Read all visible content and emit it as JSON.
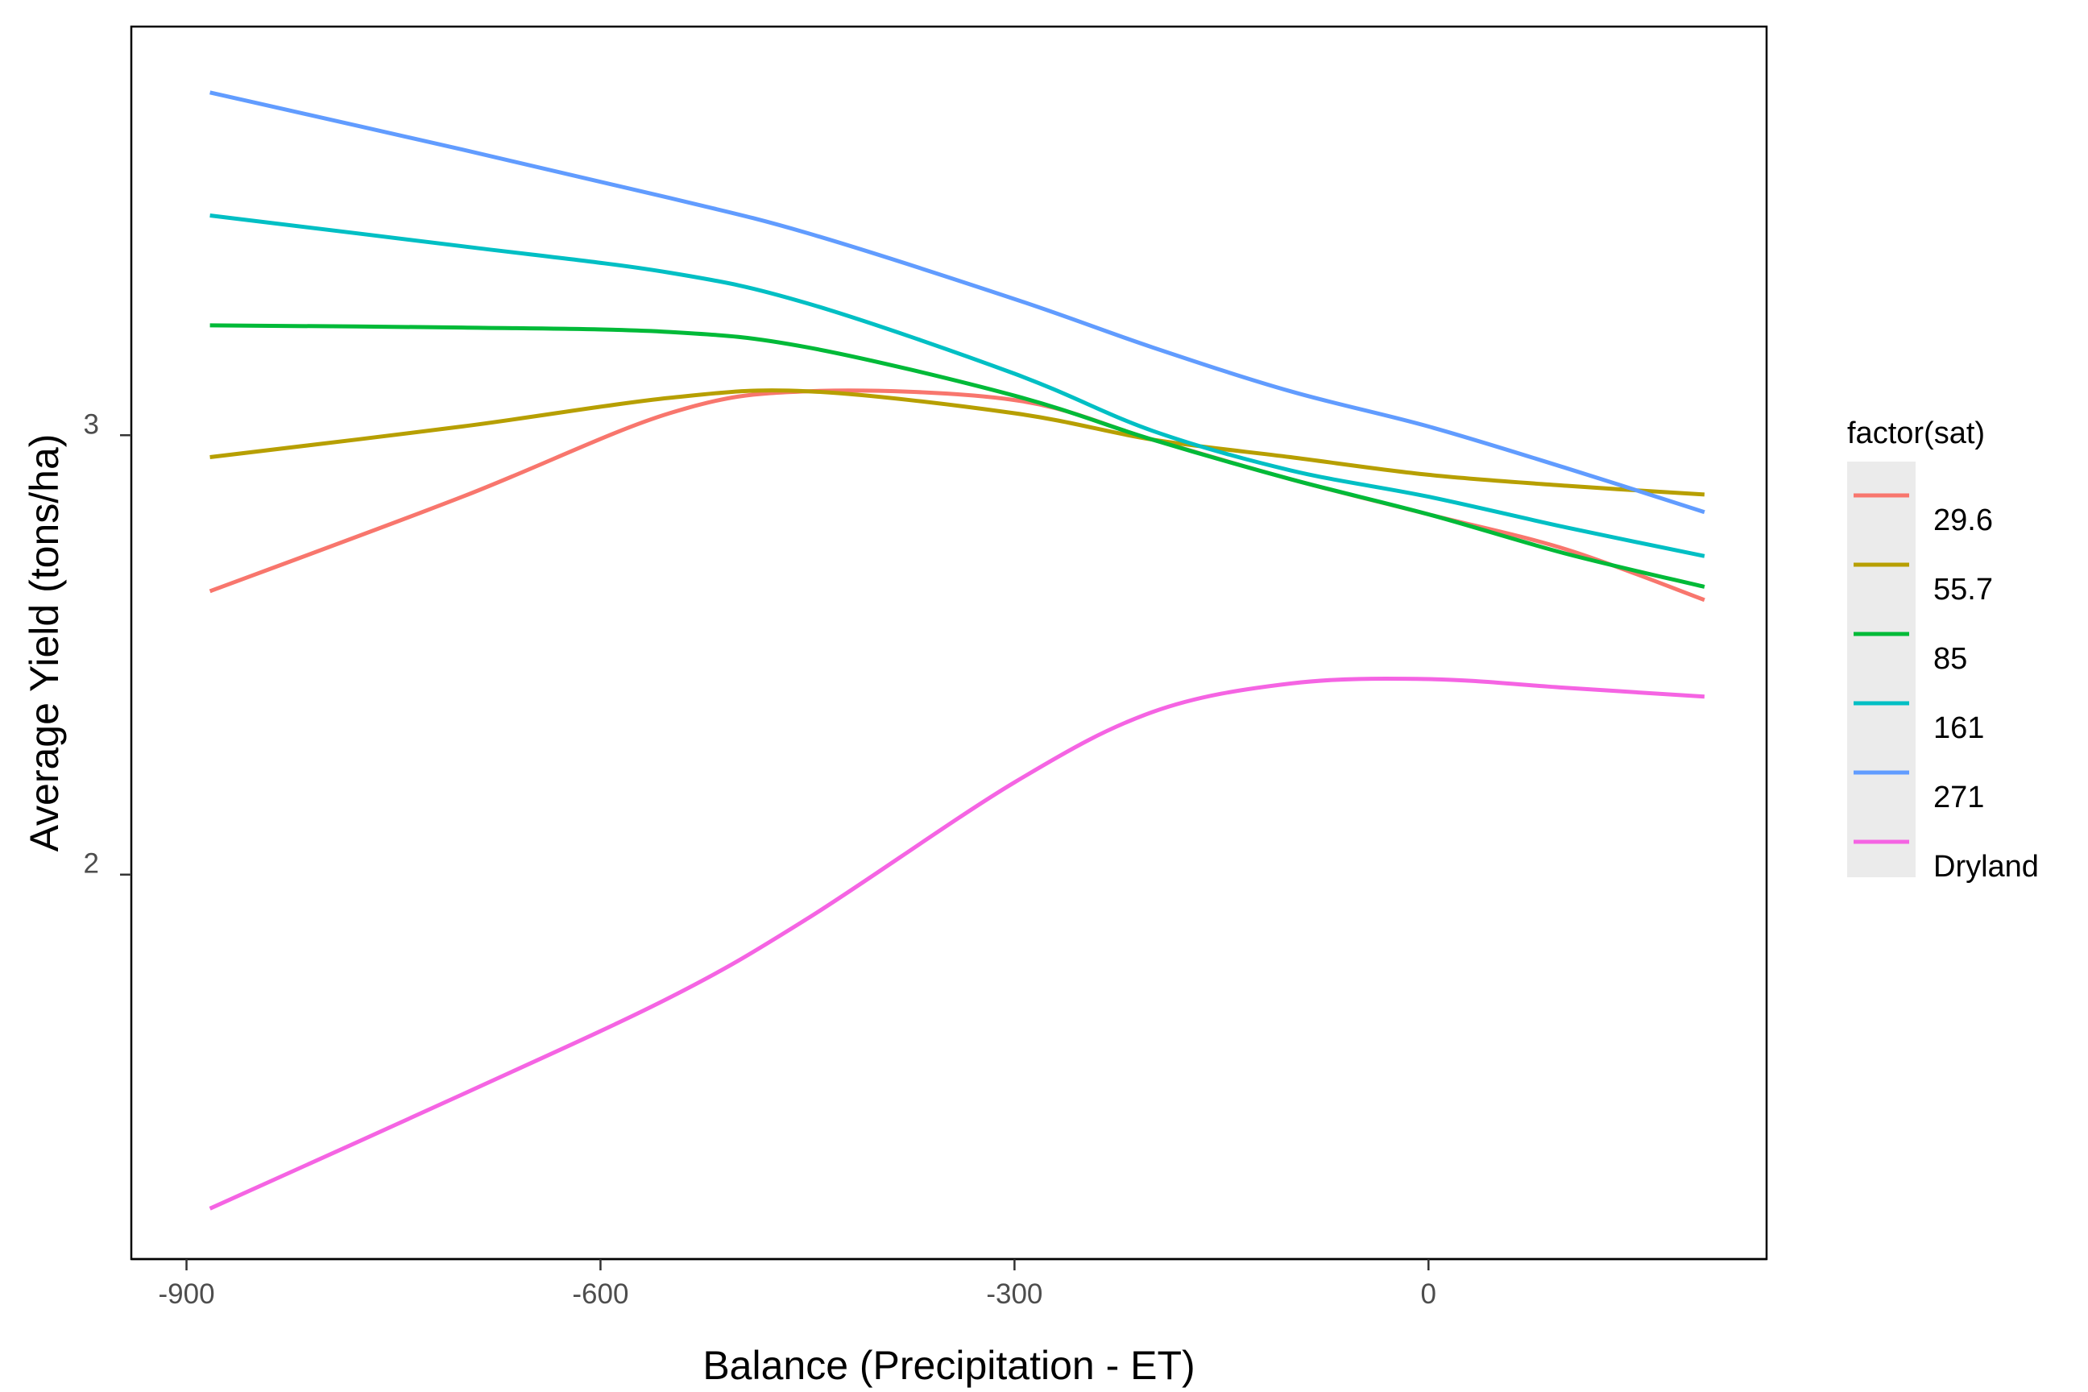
{
  "chart_data": {
    "type": "line",
    "xlabel": "Balance (Precipitation - ET)",
    "ylabel": "Average Yield (tons/ha)",
    "xlim": [
      -940,
      245
    ],
    "ylim": [
      1.125,
      3.93
    ],
    "x_ticks": [
      {
        "value": -900,
        "label": "-900"
      },
      {
        "value": -600,
        "label": "-600"
      },
      {
        "value": -300,
        "label": "-300"
      },
      {
        "value": 0,
        "label": "0"
      }
    ],
    "y_ticks": [
      {
        "value": 2,
        "label": "2"
      },
      {
        "value": 3,
        "label": "3"
      }
    ],
    "grid": false,
    "legend": {
      "title": "factor(sat)",
      "position": "right"
    },
    "x": [
      -883,
      -700,
      -550,
      -450,
      -300,
      -200,
      -100,
      0,
      100,
      200
    ],
    "series": [
      {
        "name": "29.6",
        "color": "#F8766D",
        "values": [
          2.645,
          2.86,
          3.05,
          3.1,
          3.08,
          2.99,
          2.9,
          2.82,
          2.74,
          2.625
        ]
      },
      {
        "name": "55.7",
        "color": "#B79F00",
        "values": [
          2.95,
          3.02,
          3.085,
          3.1,
          3.05,
          2.99,
          2.95,
          2.91,
          2.885,
          2.865
        ]
      },
      {
        "name": "85",
        "color": "#00BA38",
        "values": [
          3.25,
          3.245,
          3.235,
          3.2,
          3.09,
          2.99,
          2.9,
          2.82,
          2.73,
          2.655
        ]
      },
      {
        "name": "161",
        "color": "#00BFC4",
        "values": [
          3.5,
          3.43,
          3.37,
          3.3,
          3.14,
          3.01,
          2.92,
          2.86,
          2.79,
          2.725
        ]
      },
      {
        "name": "271",
        "color": "#619CFF",
        "values": [
          3.78,
          3.65,
          3.54,
          3.46,
          3.31,
          3.2,
          3.1,
          3.02,
          2.925,
          2.825
        ]
      },
      {
        "name": "Dryland",
        "color": "#F564E3",
        "values": [
          1.24,
          1.5,
          1.72,
          1.9,
          2.21,
          2.37,
          2.435,
          2.445,
          2.425,
          2.405
        ]
      }
    ]
  }
}
